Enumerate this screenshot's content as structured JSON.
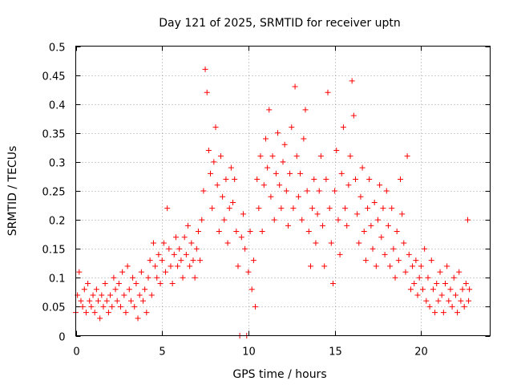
{
  "chart_data": {
    "type": "scatter",
    "title": "Day 121 of 2025, SRMTID for receiver uptn",
    "xlabel": "GPS time / hours",
    "ylabel": "SRMTID / TECUs",
    "xlim": [
      0,
      24
    ],
    "ylim": [
      0,
      0.5
    ],
    "grid": true,
    "marker": "+",
    "series_color": "#ff0000",
    "x_ticks": [
      0,
      5,
      10,
      15,
      20
    ],
    "y_ticks": [
      0,
      0.05,
      0.1,
      0.15,
      0.2,
      0.25,
      0.3,
      0.35,
      0.4,
      0.45,
      0.5
    ],
    "x_tick_labels": [
      "0",
      "5",
      "10",
      "15",
      "20"
    ],
    "y_tick_labels": [
      "0",
      "0.05",
      "0.1",
      "0.15",
      "0.2",
      "0.25",
      "0.3",
      "0.35",
      "0.4",
      "0.45",
      "0.5"
    ],
    "series": [
      {
        "name": "SRMTID",
        "points": [
          [
            0.0,
            0.04
          ],
          [
            0.1,
            0.07
          ],
          [
            0.2,
            0.11
          ],
          [
            0.3,
            0.06
          ],
          [
            0.4,
            0.05
          ],
          [
            0.5,
            0.08
          ],
          [
            0.6,
            0.04
          ],
          [
            0.7,
            0.09
          ],
          [
            0.8,
            0.06
          ],
          [
            0.9,
            0.05
          ],
          [
            1.0,
            0.07
          ],
          [
            1.1,
            0.04
          ],
          [
            1.2,
            0.08
          ],
          [
            1.3,
            0.06
          ],
          [
            1.4,
            0.03
          ],
          [
            1.5,
            0.07
          ],
          [
            1.6,
            0.05
          ],
          [
            1.7,
            0.09
          ],
          [
            1.8,
            0.06
          ],
          [
            1.9,
            0.04
          ],
          [
            2.0,
            0.07
          ],
          [
            2.1,
            0.05
          ],
          [
            2.2,
            0.1
          ],
          [
            2.3,
            0.08
          ],
          [
            2.4,
            0.06
          ],
          [
            2.5,
            0.09
          ],
          [
            2.6,
            0.05
          ],
          [
            2.7,
            0.11
          ],
          [
            2.8,
            0.07
          ],
          [
            2.9,
            0.04
          ],
          [
            3.0,
            0.12
          ],
          [
            3.1,
            0.08
          ],
          [
            3.2,
            0.06
          ],
          [
            3.3,
            0.1
          ],
          [
            3.4,
            0.05
          ],
          [
            3.5,
            0.09
          ],
          [
            3.6,
            0.03
          ],
          [
            3.7,
            0.07
          ],
          [
            3.8,
            0.11
          ],
          [
            3.9,
            0.06
          ],
          [
            4.0,
            0.08
          ],
          [
            4.1,
            0.04
          ],
          [
            4.2,
            0.1
          ],
          [
            4.3,
            0.13
          ],
          [
            4.4,
            0.07
          ],
          [
            4.5,
            0.16
          ],
          [
            4.6,
            0.12
          ],
          [
            4.7,
            0.1
          ],
          [
            4.8,
            0.14
          ],
          [
            4.9,
            0.09
          ],
          [
            5.0,
            0.13
          ],
          [
            5.1,
            0.16
          ],
          [
            5.2,
            0.11
          ],
          [
            5.3,
            0.22
          ],
          [
            5.4,
            0.15
          ],
          [
            5.5,
            0.12
          ],
          [
            5.6,
            0.09
          ],
          [
            5.7,
            0.14
          ],
          [
            5.8,
            0.17
          ],
          [
            5.9,
            0.12
          ],
          [
            6.0,
            0.15
          ],
          [
            6.1,
            0.13
          ],
          [
            6.2,
            0.1
          ],
          [
            6.3,
            0.17
          ],
          [
            6.4,
            0.14
          ],
          [
            6.5,
            0.19
          ],
          [
            6.6,
            0.12
          ],
          [
            6.7,
            0.16
          ],
          [
            6.8,
            0.13
          ],
          [
            6.9,
            0.1
          ],
          [
            7.0,
            0.15
          ],
          [
            7.1,
            0.18
          ],
          [
            7.2,
            0.13
          ],
          [
            7.3,
            0.2
          ],
          [
            7.4,
            0.25
          ],
          [
            7.5,
            0.46
          ],
          [
            7.6,
            0.42
          ],
          [
            7.7,
            0.32
          ],
          [
            7.8,
            0.28
          ],
          [
            7.9,
            0.22
          ],
          [
            8.0,
            0.3
          ],
          [
            8.1,
            0.36
          ],
          [
            8.2,
            0.26
          ],
          [
            8.3,
            0.18
          ],
          [
            8.4,
            0.31
          ],
          [
            8.5,
            0.24
          ],
          [
            8.6,
            0.2
          ],
          [
            8.7,
            0.27
          ],
          [
            8.8,
            0.16
          ],
          [
            8.9,
            0.22
          ],
          [
            9.0,
            0.29
          ],
          [
            9.1,
            0.23
          ],
          [
            9.2,
            0.27
          ],
          [
            9.3,
            0.18
          ],
          [
            9.4,
            0.12
          ],
          [
            9.5,
            0.0
          ],
          [
            9.6,
            0.17
          ],
          [
            9.7,
            0.21
          ],
          [
            9.8,
            0.15
          ],
          [
            9.9,
            0.0
          ],
          [
            10.0,
            0.11
          ],
          [
            10.1,
            0.18
          ],
          [
            10.2,
            0.08
          ],
          [
            10.3,
            0.13
          ],
          [
            10.4,
            0.05
          ],
          [
            10.5,
            0.27
          ],
          [
            10.6,
            0.22
          ],
          [
            10.7,
            0.31
          ],
          [
            10.8,
            0.18
          ],
          [
            10.9,
            0.26
          ],
          [
            11.0,
            0.34
          ],
          [
            11.1,
            0.29
          ],
          [
            11.2,
            0.39
          ],
          [
            11.3,
            0.24
          ],
          [
            11.4,
            0.31
          ],
          [
            11.5,
            0.2
          ],
          [
            11.6,
            0.28
          ],
          [
            11.7,
            0.35
          ],
          [
            11.8,
            0.26
          ],
          [
            11.9,
            0.22
          ],
          [
            12.0,
            0.3
          ],
          [
            12.1,
            0.33
          ],
          [
            12.2,
            0.25
          ],
          [
            12.3,
            0.19
          ],
          [
            12.4,
            0.28
          ],
          [
            12.5,
            0.36
          ],
          [
            12.6,
            0.22
          ],
          [
            12.7,
            0.43
          ],
          [
            12.8,
            0.31
          ],
          [
            12.9,
            0.24
          ],
          [
            13.0,
            0.28
          ],
          [
            13.1,
            0.2
          ],
          [
            13.2,
            0.34
          ],
          [
            13.3,
            0.39
          ],
          [
            13.4,
            0.25
          ],
          [
            13.5,
            0.18
          ],
          [
            13.6,
            0.12
          ],
          [
            13.7,
            0.22
          ],
          [
            13.8,
            0.27
          ],
          [
            13.9,
            0.16
          ],
          [
            14.0,
            0.21
          ],
          [
            14.1,
            0.25
          ],
          [
            14.2,
            0.31
          ],
          [
            14.3,
            0.19
          ],
          [
            14.4,
            0.12
          ],
          [
            14.5,
            0.27
          ],
          [
            14.6,
            0.42
          ],
          [
            14.7,
            0.22
          ],
          [
            14.8,
            0.16
          ],
          [
            14.9,
            0.09
          ],
          [
            15.0,
            0.25
          ],
          [
            15.1,
            0.32
          ],
          [
            15.2,
            0.2
          ],
          [
            15.3,
            0.14
          ],
          [
            15.4,
            0.28
          ],
          [
            15.5,
            0.36
          ],
          [
            15.6,
            0.22
          ],
          [
            15.7,
            0.19
          ],
          [
            15.8,
            0.26
          ],
          [
            15.9,
            0.31
          ],
          [
            16.0,
            0.44
          ],
          [
            16.1,
            0.38
          ],
          [
            16.2,
            0.27
          ],
          [
            16.3,
            0.21
          ],
          [
            16.4,
            0.16
          ],
          [
            16.5,
            0.24
          ],
          [
            16.6,
            0.29
          ],
          [
            16.7,
            0.18
          ],
          [
            16.8,
            0.13
          ],
          [
            16.9,
            0.22
          ],
          [
            17.0,
            0.27
          ],
          [
            17.1,
            0.19
          ],
          [
            17.2,
            0.15
          ],
          [
            17.3,
            0.23
          ],
          [
            17.4,
            0.12
          ],
          [
            17.5,
            0.2
          ],
          [
            17.6,
            0.26
          ],
          [
            17.7,
            0.17
          ],
          [
            17.8,
            0.22
          ],
          [
            17.9,
            0.14
          ],
          [
            18.0,
            0.25
          ],
          [
            18.1,
            0.19
          ],
          [
            18.2,
            0.12
          ],
          [
            18.3,
            0.22
          ],
          [
            18.4,
            0.15
          ],
          [
            18.5,
            0.1
          ],
          [
            18.6,
            0.18
          ],
          [
            18.7,
            0.13
          ],
          [
            18.8,
            0.27
          ],
          [
            18.9,
            0.21
          ],
          [
            19.0,
            0.16
          ],
          [
            19.1,
            0.11
          ],
          [
            19.2,
            0.31
          ],
          [
            19.3,
            0.14
          ],
          [
            19.4,
            0.08
          ],
          [
            19.5,
            0.12
          ],
          [
            19.6,
            0.09
          ],
          [
            19.7,
            0.13
          ],
          [
            19.8,
            0.07
          ],
          [
            19.9,
            0.1
          ],
          [
            20.0,
            0.12
          ],
          [
            20.1,
            0.08
          ],
          [
            20.2,
            0.15
          ],
          [
            20.3,
            0.06
          ],
          [
            20.4,
            0.1
          ],
          [
            20.5,
            0.05
          ],
          [
            20.6,
            0.13
          ],
          [
            20.7,
            0.08
          ],
          [
            20.8,
            0.04
          ],
          [
            20.9,
            0.09
          ],
          [
            21.0,
            0.06
          ],
          [
            21.1,
            0.11
          ],
          [
            21.2,
            0.07
          ],
          [
            21.3,
            0.04
          ],
          [
            21.4,
            0.09
          ],
          [
            21.5,
            0.12
          ],
          [
            21.6,
            0.06
          ],
          [
            21.7,
            0.08
          ],
          [
            21.8,
            0.05
          ],
          [
            21.9,
            0.1
          ],
          [
            22.0,
            0.07
          ],
          [
            22.1,
            0.04
          ],
          [
            22.2,
            0.11
          ],
          [
            22.3,
            0.06
          ],
          [
            22.4,
            0.08
          ],
          [
            22.5,
            0.05
          ],
          [
            22.6,
            0.09
          ],
          [
            22.7,
            0.2
          ],
          [
            22.75,
            0.06
          ],
          [
            22.8,
            0.08
          ]
        ]
      }
    ]
  }
}
